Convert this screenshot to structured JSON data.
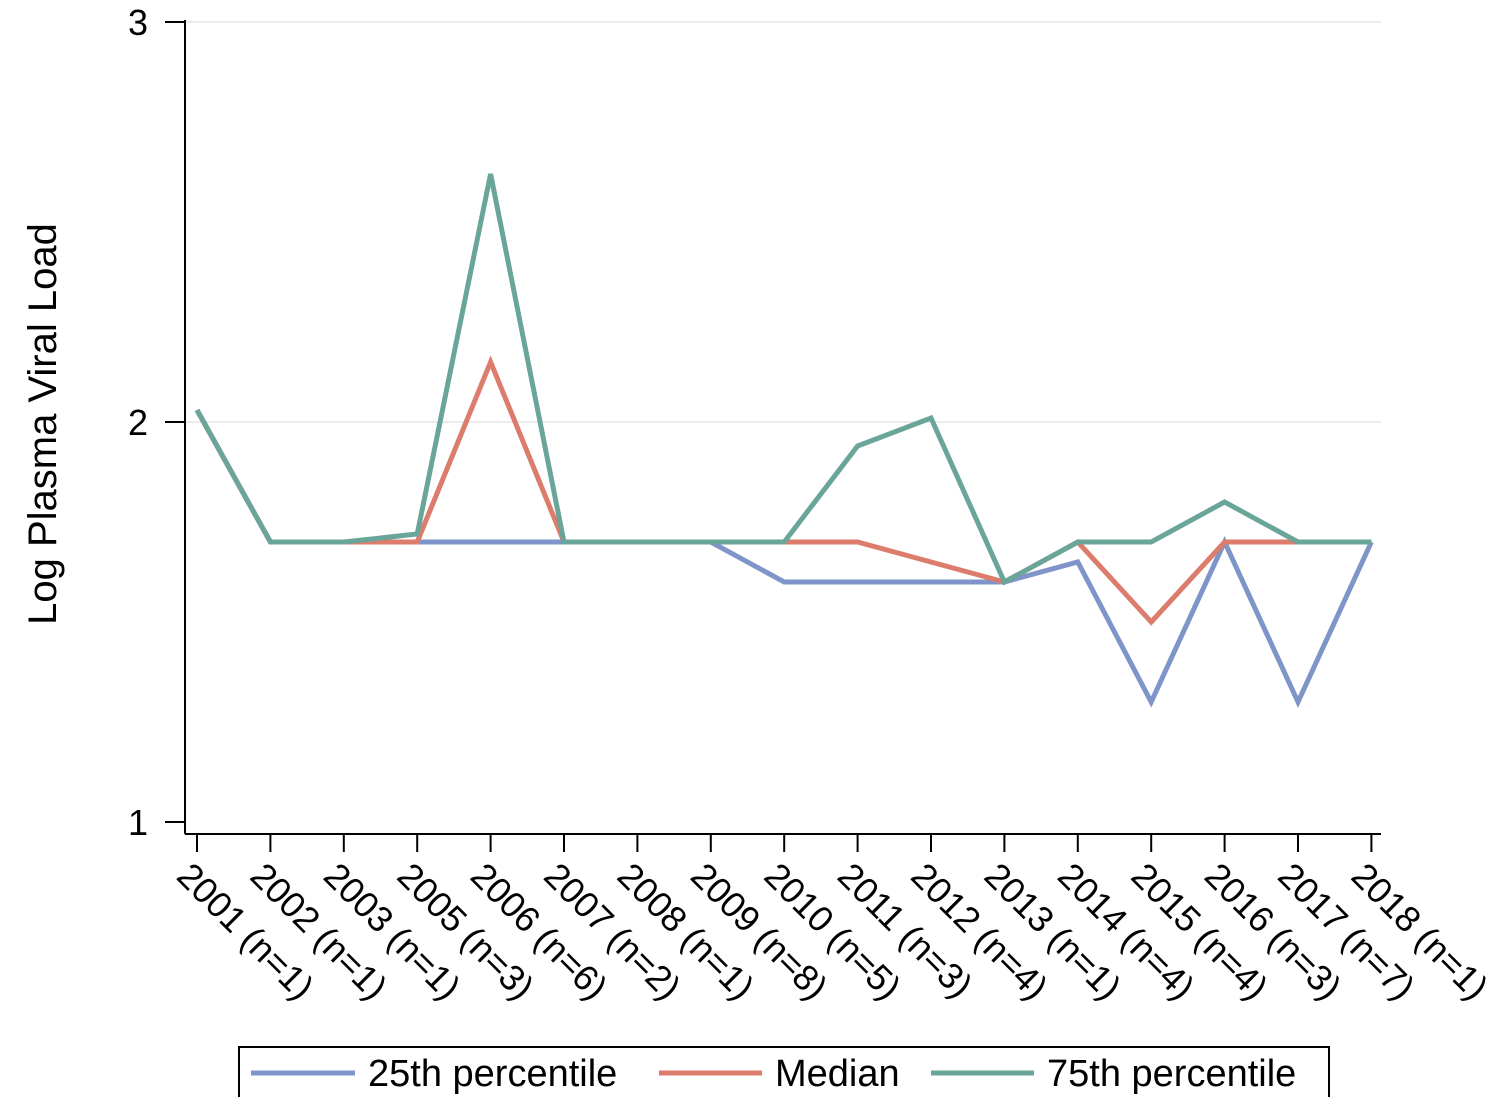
{
  "chart_data": {
    "type": "line",
    "title": "",
    "xlabel": "",
    "ylabel": "Log Plasma Viral Load",
    "ylim": [
      1,
      3
    ],
    "yticks": [
      "1",
      "2",
      "3"
    ],
    "grid": true,
    "legend_position": "bottom",
    "categories": [
      "2001 (n=1)",
      "2002 (n=1)",
      "2003 (n=1)",
      "2005 (n=3)",
      "2006 (n=6)",
      "2007 (n=2)",
      "2008 (n=1)",
      "2009 (n=8)",
      "2010 (n=5)",
      "2011 (n=3)",
      "2012 (n=4)",
      "2013 (n=1)",
      "2014 (n=4)",
      "2015 (n=4)",
      "2016 (n=3)",
      "2017 (n=7)",
      "2018 (n=1)"
    ],
    "series": [
      {
        "name": "25th percentile",
        "color": "#7f94c8",
        "values": [
          2.03,
          1.7,
          1.7,
          1.7,
          1.7,
          1.7,
          1.7,
          1.7,
          1.6,
          1.6,
          1.6,
          1.6,
          1.65,
          1.3,
          1.7,
          1.3,
          1.7
        ]
      },
      {
        "name": "Median",
        "color": "#dc7c6c",
        "values": [
          2.03,
          1.7,
          1.7,
          1.7,
          2.15,
          1.7,
          1.7,
          1.7,
          1.7,
          1.7,
          1.65,
          1.6,
          1.7,
          1.5,
          1.7,
          1.7,
          1.7
        ]
      },
      {
        "name": "75th percentile",
        "color": "#6aa599",
        "values": [
          2.03,
          1.7,
          1.7,
          1.72,
          2.62,
          1.7,
          1.7,
          1.7,
          1.7,
          1.94,
          2.01,
          1.6,
          1.7,
          1.7,
          1.8,
          1.7,
          1.7
        ]
      }
    ]
  }
}
